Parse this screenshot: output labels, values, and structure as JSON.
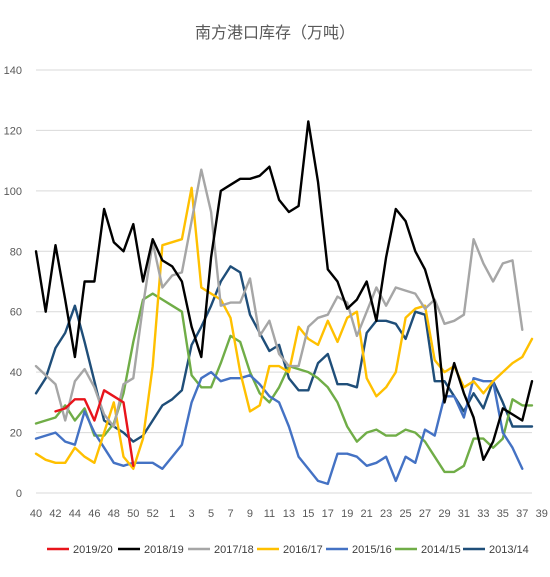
{
  "chart_data": {
    "type": "line",
    "title": "南方港口库存（万吨）",
    "xlabel": "",
    "ylabel": "",
    "ylim": [
      0,
      140
    ],
    "yticks": [
      0,
      20,
      40,
      60,
      80,
      100,
      120,
      140
    ],
    "x": [
      40,
      41,
      42,
      43,
      44,
      45,
      46,
      47,
      48,
      49,
      50,
      51,
      52,
      1,
      2,
      3,
      4,
      5,
      6,
      7,
      8,
      9,
      10,
      11,
      12,
      13,
      14,
      15,
      16,
      17,
      18,
      19,
      20,
      21,
      22,
      23,
      24,
      25,
      26,
      27,
      28,
      29,
      30,
      31,
      32,
      33,
      34,
      35,
      36,
      37,
      38,
      39
    ],
    "x_tick_labels": [
      "40",
      "42",
      "44",
      "46",
      "48",
      "50",
      "52",
      "1",
      "3",
      "5",
      "7",
      "9",
      "11",
      "13",
      "15",
      "17",
      "19",
      "21",
      "23",
      "25",
      "27",
      "29",
      "31",
      "33",
      "35",
      "37",
      "39"
    ],
    "grid": true,
    "legend_position": "bottom",
    "series": [
      {
        "name": "2019/20",
        "color": "#e8141b",
        "values": [
          null,
          null,
          27,
          28,
          31,
          31,
          24,
          34,
          32,
          30,
          9,
          null,
          null,
          null,
          null,
          null,
          null,
          null,
          null,
          null,
          null,
          null,
          null,
          null,
          null,
          null,
          null,
          null,
          null,
          null,
          null,
          null,
          null,
          null,
          null,
          null,
          null,
          null,
          null,
          null,
          null,
          null,
          null,
          null,
          null,
          null,
          null,
          null,
          null,
          null,
          null,
          null
        ]
      },
      {
        "name": "2018/19",
        "color": "#000000",
        "values": [
          80,
          60,
          82,
          64,
          45,
          70,
          70,
          94,
          83,
          80,
          89,
          70,
          84,
          77,
          75,
          70,
          55,
          45,
          78,
          100,
          102,
          104,
          104,
          105,
          108,
          97,
          93,
          95,
          123,
          103,
          74,
          70,
          61,
          64,
          70,
          57,
          78,
          94,
          90,
          80,
          74,
          63,
          30,
          43,
          33,
          25,
          11,
          17,
          28,
          26,
          24,
          37
        ]
      },
      {
        "name": "2017/18",
        "color": "#a6a6a6",
        "values": [
          42,
          39,
          36,
          24,
          37,
          41,
          35,
          26,
          22,
          36,
          38,
          62,
          83,
          68,
          72,
          73,
          90,
          107,
          93,
          62,
          63,
          63,
          71,
          52,
          57,
          46,
          42,
          42,
          55,
          58,
          59,
          65,
          63,
          52,
          60,
          68,
          62,
          68,
          67,
          66,
          61,
          64,
          56,
          57,
          59,
          84,
          76,
          70,
          76,
          77,
          54,
          null
        ]
      },
      {
        "name": "2016/17",
        "color": "#ffc000",
        "values": [
          13,
          11,
          10,
          10,
          15,
          12,
          10,
          20,
          30,
          12,
          8,
          18,
          42,
          82,
          83,
          84,
          101,
          68,
          66,
          64,
          58,
          40,
          27,
          29,
          42,
          42,
          40,
          55,
          51,
          49,
          57,
          50,
          58,
          60,
          38,
          32,
          35,
          40,
          58,
          61,
          62,
          44,
          40,
          42,
          35,
          37,
          33,
          37,
          40,
          43,
          45,
          51
        ]
      },
      {
        "name": "2015/16",
        "color": "#4472c4",
        "values": [
          18,
          19,
          20,
          17,
          16,
          27,
          20,
          15,
          10,
          9,
          10,
          10,
          10,
          8,
          12,
          16,
          30,
          38,
          40,
          37,
          38,
          38,
          39,
          36,
          32,
          30,
          22,
          12,
          8,
          4,
          3,
          13,
          13,
          12,
          9,
          10,
          12,
          4,
          12,
          10,
          21,
          19,
          32,
          32,
          25,
          38,
          37,
          37,
          20,
          15,
          8,
          null
        ]
      },
      {
        "name": "2014/15",
        "color": "#70ad47",
        "values": [
          23,
          24,
          25,
          29,
          24,
          28,
          19,
          19,
          23,
          33,
          50,
          64,
          66,
          64,
          62,
          60,
          39,
          35,
          35,
          43,
          52,
          50,
          40,
          33,
          30,
          35,
          42,
          41,
          40,
          38,
          35,
          30,
          22,
          17,
          20,
          21,
          19,
          19,
          21,
          20,
          17,
          12,
          7,
          7,
          9,
          18,
          18,
          15,
          18,
          31,
          29,
          29
        ]
      },
      {
        "name": "2013/14",
        "color": "#1f4e79",
        "values": [
          33,
          38,
          48,
          53,
          62,
          50,
          37,
          24,
          22,
          20,
          17,
          19,
          24,
          29,
          31,
          34,
          49,
          55,
          62,
          70,
          75,
          73,
          59,
          53,
          47,
          49,
          38,
          34,
          34,
          43,
          46,
          36,
          36,
          35,
          53,
          57,
          57,
          56,
          51,
          60,
          59,
          37,
          37,
          32,
          27,
          33,
          28,
          37,
          30,
          22,
          22,
          22
        ]
      }
    ]
  }
}
